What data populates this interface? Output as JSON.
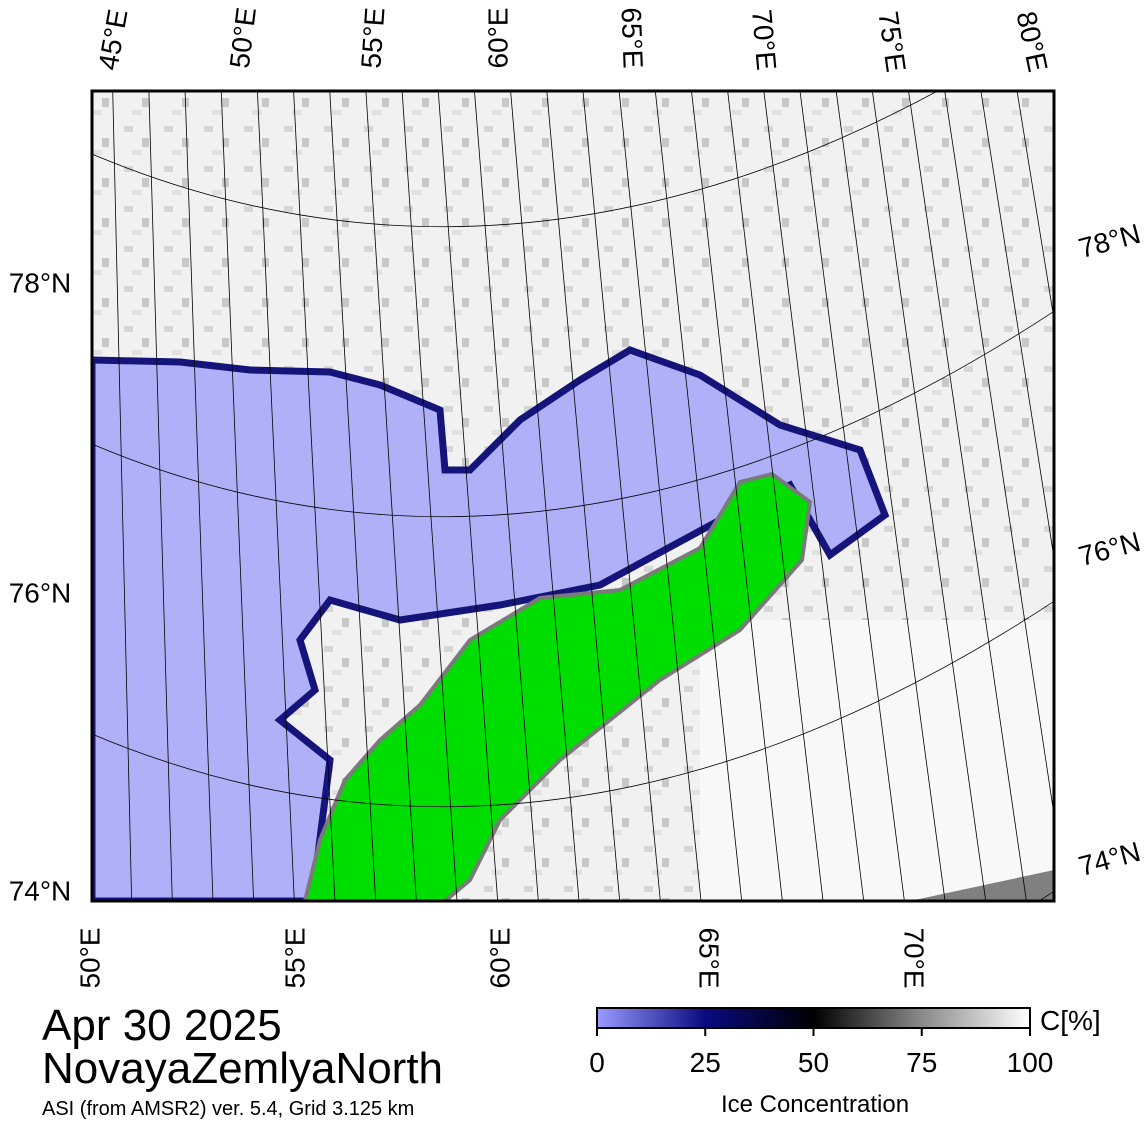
{
  "date": "Apr 30 2025",
  "region": "NovayaZemlyaNorth",
  "source": "ASI (from AMSR2) ver. 5.4,  Grid 3.125 km",
  "map": {
    "top_labels": [
      "45°E",
      "50°E",
      "55°E",
      "60°E",
      "65°E",
      "70°E",
      "75°E",
      "80°E"
    ],
    "bottom_labels": [
      "50°E",
      "55°E",
      "60°E",
      "65°E",
      "70°E"
    ],
    "left_labels": [
      "78°N",
      "76°N",
      "74°N"
    ],
    "right_labels": [
      "78°N",
      "76°N",
      "74°N"
    ]
  },
  "colorbar": {
    "unit": "C[%]",
    "label": "Ice Concentration",
    "lim": [
      0,
      100
    ],
    "ticks": [
      0,
      25,
      50,
      75,
      100
    ]
  }
}
